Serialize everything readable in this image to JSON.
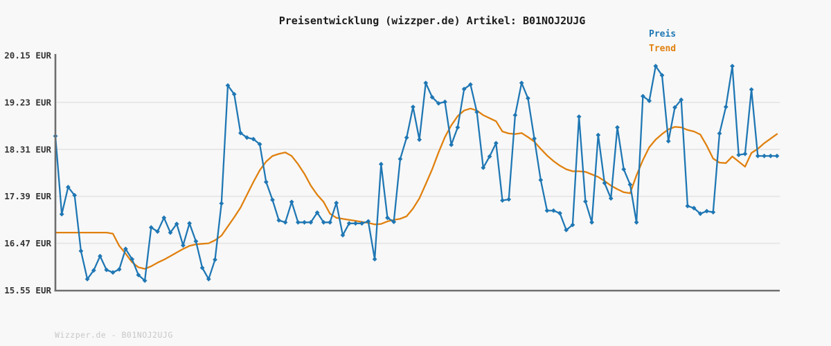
{
  "title": {
    "text": "Preisentwicklung (wizzper.de) Artikel: B01NOJ2UJG"
  },
  "legend": {
    "preis": {
      "label": "Preis",
      "color": "#1f77b4"
    },
    "trend": {
      "label": "Trend",
      "color": "#e0800e"
    }
  },
  "footer": {
    "text": "Wizzper.de - B01NOJ2UJG"
  },
  "chart_data": {
    "type": "line",
    "title": "Preisentwicklung (wizzper.de) Artikel: B01NOJ2UJG",
    "xlabel": "",
    "ylabel": "",
    "ylim": [
      15.55,
      20.15
    ],
    "grid": "horizontal",
    "legend_position": "top-right",
    "x_tick_labels_visible": false,
    "currency": "EUR",
    "n_points": 114,
    "y_ticks": [
      {
        "value": 20.15,
        "label": "20.15 EUR"
      },
      {
        "value": 19.23,
        "label": "19.23 EUR"
      },
      {
        "value": 18.31,
        "label": "18.31 EUR"
      },
      {
        "value": 17.39,
        "label": "17.39 EUR"
      },
      {
        "value": 16.47,
        "label": "16.47 EUR"
      },
      {
        "value": 15.55,
        "label": "15.55 EUR"
      }
    ],
    "axis_color": "#6e6e6e",
    "grid_color": "#e4e4e4",
    "tick_label_color": "#333333",
    "series": [
      {
        "name": "Preis",
        "color": "#1f77b4",
        "marker": "diamond",
        "values": [
          18.57,
          17.04,
          17.57,
          17.41,
          16.32,
          15.77,
          15.94,
          16.22,
          15.95,
          15.9,
          15.96,
          16.36,
          16.16,
          15.85,
          15.74,
          16.78,
          16.7,
          16.97,
          16.68,
          16.85,
          16.43,
          16.86,
          16.51,
          15.99,
          15.77,
          16.15,
          17.25,
          19.56,
          19.39,
          18.63,
          18.54,
          18.51,
          18.41,
          17.67,
          17.32,
          16.92,
          16.88,
          17.28,
          16.88,
          16.88,
          16.88,
          17.07,
          16.88,
          16.88,
          17.26,
          16.63,
          16.86,
          16.86,
          16.86,
          16.9,
          16.16,
          18.02,
          16.97,
          16.89,
          18.12,
          18.54,
          19.14,
          18.5,
          19.61,
          19.33,
          19.21,
          19.24,
          18.4,
          18.74,
          19.49,
          19.58,
          19.04,
          17.95,
          18.17,
          18.43,
          17.31,
          17.33,
          18.98,
          19.61,
          19.31,
          18.52,
          17.71,
          17.11,
          17.11,
          17.06,
          16.73,
          16.83,
          18.95,
          17.29,
          16.88,
          18.59,
          17.65,
          17.35,
          18.74,
          17.92,
          17.62,
          16.88,
          19.35,
          19.26,
          19.94,
          19.76,
          18.47,
          19.13,
          19.28,
          17.2,
          17.16,
          17.05,
          17.1,
          17.08,
          18.62,
          19.14,
          19.94,
          18.2,
          18.22,
          19.48,
          18.18,
          18.18,
          18.18,
          18.18
        ]
      },
      {
        "name": "Trend",
        "color": "#e0800e",
        "marker": "none",
        "values": [
          16.68,
          16.68,
          16.68,
          16.68,
          16.68,
          16.68,
          16.68,
          16.68,
          16.68,
          16.66,
          16.42,
          16.27,
          16.1,
          16.0,
          15.97,
          16.02,
          16.09,
          16.15,
          16.22,
          16.29,
          16.36,
          16.42,
          16.45,
          16.46,
          16.47,
          16.53,
          16.62,
          16.8,
          16.98,
          17.17,
          17.42,
          17.67,
          17.9,
          18.07,
          18.18,
          18.22,
          18.25,
          18.18,
          18.02,
          17.83,
          17.6,
          17.42,
          17.28,
          17.05,
          16.97,
          16.95,
          16.93,
          16.91,
          16.89,
          16.87,
          16.84,
          16.85,
          16.9,
          16.93,
          16.95,
          17.0,
          17.15,
          17.35,
          17.63,
          17.92,
          18.25,
          18.55,
          18.78,
          18.96,
          19.07,
          19.11,
          19.07,
          18.98,
          18.92,
          18.86,
          18.66,
          18.62,
          18.61,
          18.63,
          18.55,
          18.46,
          18.32,
          18.19,
          18.08,
          17.99,
          17.92,
          17.88,
          17.88,
          17.87,
          17.82,
          17.77,
          17.69,
          17.6,
          17.53,
          17.47,
          17.45,
          17.8,
          18.1,
          18.35,
          18.5,
          18.61,
          18.7,
          18.75,
          18.74,
          18.69,
          18.66,
          18.6,
          18.38,
          18.13,
          18.05,
          18.04,
          18.17,
          18.07,
          17.97,
          18.24,
          18.32,
          18.43,
          18.52,
          18.61
        ]
      }
    ]
  }
}
